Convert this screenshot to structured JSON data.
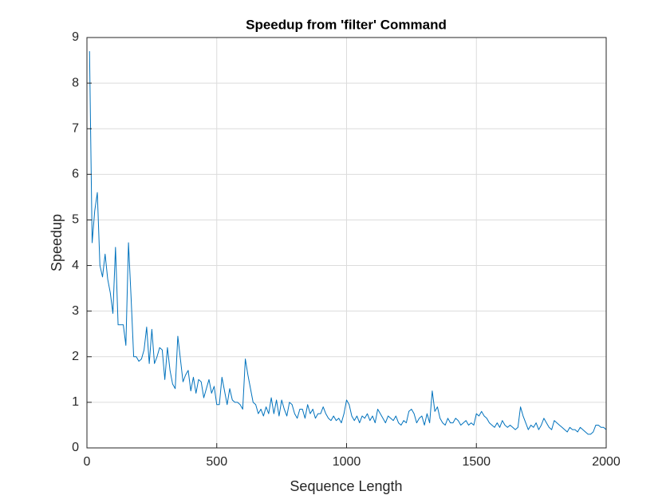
{
  "chart_data": {
    "type": "line",
    "title": "Speedup from 'filter' Command",
    "xlabel": "Sequence Length",
    "ylabel": "Speedup",
    "xlim": [
      0,
      2000
    ],
    "xticks": [
      0,
      500,
      1000,
      1500,
      2000
    ],
    "ylim": [
      0,
      9
    ],
    "yticks": [
      0,
      1,
      2,
      3,
      4,
      5,
      6,
      7,
      8,
      9
    ],
    "grid": true,
    "x": [
      10,
      20,
      30,
      40,
      50,
      60,
      70,
      80,
      90,
      100,
      110,
      120,
      130,
      140,
      150,
      160,
      170,
      180,
      190,
      200,
      210,
      220,
      230,
      240,
      250,
      260,
      270,
      280,
      290,
      300,
      310,
      320,
      330,
      340,
      350,
      360,
      370,
      380,
      390,
      400,
      410,
      420,
      430,
      440,
      450,
      460,
      470,
      480,
      490,
      500,
      510,
      520,
      530,
      540,
      550,
      560,
      570,
      580,
      590,
      600,
      610,
      620,
      630,
      640,
      650,
      660,
      670,
      680,
      690,
      700,
      710,
      720,
      730,
      740,
      750,
      760,
      770,
      780,
      790,
      800,
      810,
      820,
      830,
      840,
      850,
      860,
      870,
      880,
      890,
      900,
      910,
      920,
      930,
      940,
      950,
      960,
      970,
      980,
      990,
      1000,
      1010,
      1020,
      1030,
      1040,
      1050,
      1060,
      1070,
      1080,
      1090,
      1100,
      1110,
      1120,
      1130,
      1140,
      1150,
      1160,
      1170,
      1180,
      1190,
      1200,
      1210,
      1220,
      1230,
      1240,
      1250,
      1260,
      1270,
      1280,
      1290,
      1300,
      1310,
      1320,
      1330,
      1340,
      1350,
      1360,
      1370,
      1380,
      1390,
      1400,
      1410,
      1420,
      1430,
      1440,
      1450,
      1460,
      1470,
      1480,
      1490,
      1500,
      1510,
      1520,
      1530,
      1540,
      1550,
      1560,
      1570,
      1580,
      1590,
      1600,
      1610,
      1620,
      1630,
      1640,
      1650,
      1660,
      1670,
      1680,
      1690,
      1700,
      1710,
      1720,
      1730,
      1740,
      1750,
      1760,
      1770,
      1780,
      1790,
      1800,
      1810,
      1820,
      1830,
      1840,
      1850,
      1860,
      1870,
      1880,
      1890,
      1900,
      1910,
      1920,
      1930,
      1940,
      1950,
      1960,
      1970,
      1980,
      1990,
      2000
    ],
    "series": [
      {
        "color": "#0072bd",
        "values": [
          8.7,
          4.5,
          5.2,
          5.6,
          4.0,
          3.75,
          4.25,
          3.7,
          3.4,
          2.95,
          4.4,
          2.7,
          2.7,
          2.7,
          2.25,
          4.5,
          3.3,
          2.0,
          2.0,
          1.9,
          1.95,
          2.15,
          2.65,
          1.85,
          2.6,
          1.85,
          2.0,
          2.2,
          2.15,
          1.5,
          2.2,
          1.7,
          1.4,
          1.3,
          2.45,
          1.95,
          1.45,
          1.6,
          1.7,
          1.25,
          1.55,
          1.2,
          1.5,
          1.45,
          1.1,
          1.3,
          1.5,
          1.2,
          1.35,
          0.95,
          0.95,
          1.55,
          1.25,
          0.95,
          1.3,
          1.05,
          1.0,
          1.0,
          0.95,
          0.85,
          1.95,
          1.6,
          1.3,
          1.0,
          0.95,
          0.75,
          0.85,
          0.7,
          0.9,
          0.75,
          1.1,
          0.75,
          1.05,
          0.7,
          1.05,
          0.85,
          0.7,
          1.0,
          0.95,
          0.75,
          0.65,
          0.85,
          0.85,
          0.65,
          0.95,
          0.75,
          0.85,
          0.65,
          0.75,
          0.75,
          0.9,
          0.75,
          0.65,
          0.6,
          0.7,
          0.6,
          0.65,
          0.55,
          0.75,
          1.05,
          0.95,
          0.7,
          0.6,
          0.7,
          0.55,
          0.7,
          0.65,
          0.75,
          0.6,
          0.7,
          0.55,
          0.85,
          0.75,
          0.65,
          0.55,
          0.7,
          0.65,
          0.6,
          0.7,
          0.55,
          0.5,
          0.6,
          0.55,
          0.8,
          0.85,
          0.75,
          0.55,
          0.65,
          0.7,
          0.5,
          0.75,
          0.55,
          1.25,
          0.8,
          0.9,
          0.65,
          0.55,
          0.5,
          0.65,
          0.55,
          0.55,
          0.65,
          0.6,
          0.5,
          0.55,
          0.6,
          0.5,
          0.55,
          0.5,
          0.75,
          0.7,
          0.8,
          0.7,
          0.65,
          0.55,
          0.5,
          0.45,
          0.55,
          0.45,
          0.6,
          0.5,
          0.45,
          0.5,
          0.45,
          0.4,
          0.45,
          0.9,
          0.7,
          0.55,
          0.4,
          0.5,
          0.45,
          0.55,
          0.4,
          0.5,
          0.65,
          0.55,
          0.45,
          0.4,
          0.6,
          0.55,
          0.5,
          0.45,
          0.4,
          0.35,
          0.45,
          0.4,
          0.4,
          0.35,
          0.45,
          0.4,
          0.35,
          0.3,
          0.3,
          0.35,
          0.5,
          0.5,
          0.45,
          0.45,
          0.4
        ]
      }
    ]
  }
}
